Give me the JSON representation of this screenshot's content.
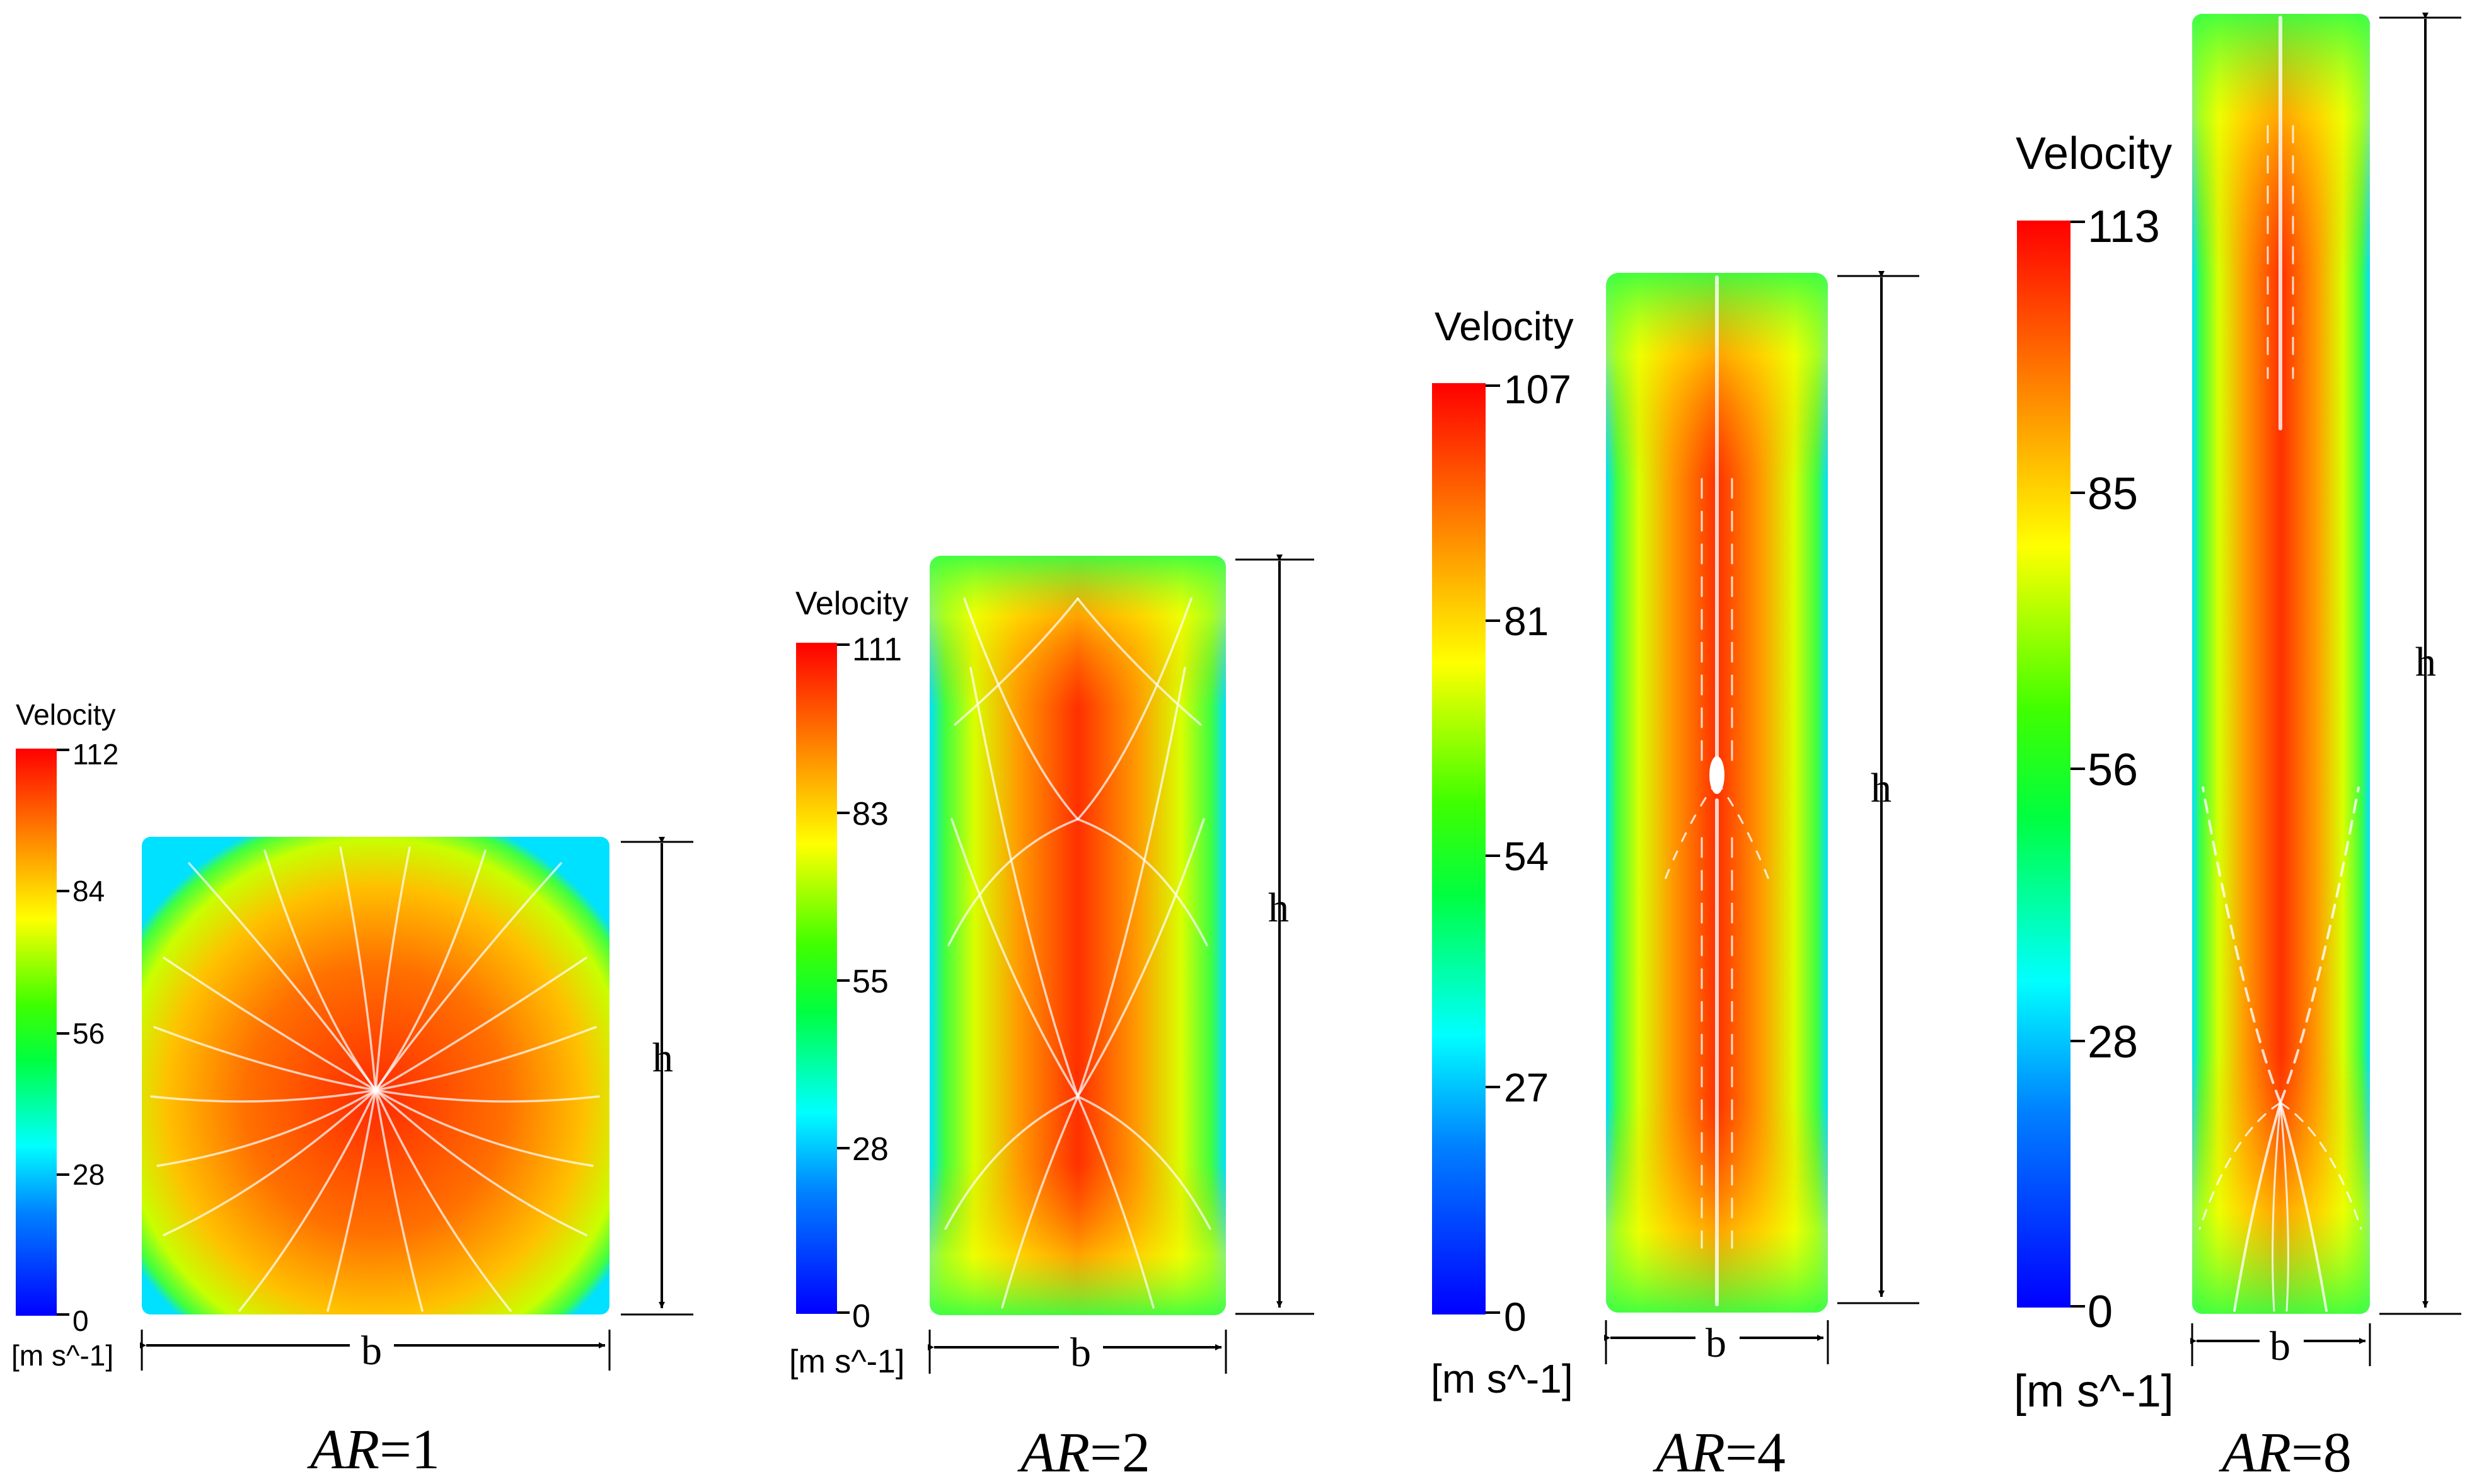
{
  "colorbar_title": "Velocity",
  "unit_label": "[m s^-1]",
  "dim_width": "b",
  "dim_height": "h",
  "panels": [
    {
      "ar_prefix": "AR",
      "ar_value": "=1",
      "ticks": [
        "112",
        "84",
        "56",
        "28",
        "0"
      ]
    },
    {
      "ar_prefix": "AR",
      "ar_value": "=2",
      "ticks": [
        "111",
        "83",
        "55",
        "28",
        "0"
      ]
    },
    {
      "ar_prefix": "AR",
      "ar_value": "=4",
      "ticks": [
        "107",
        "81",
        "54",
        "27",
        "0"
      ]
    },
    {
      "ar_prefix": "AR",
      "ar_value": "=8",
      "ticks": [
        "113",
        "85",
        "56",
        "28",
        "0"
      ]
    }
  ],
  "colors": {
    "jet": [
      "#0000ff",
      "#00ffff",
      "#00ff00",
      "#ffff00",
      "#ff0000"
    ],
    "background": "#ffffff",
    "streamline": "#ffffff",
    "text": "#000000"
  }
}
